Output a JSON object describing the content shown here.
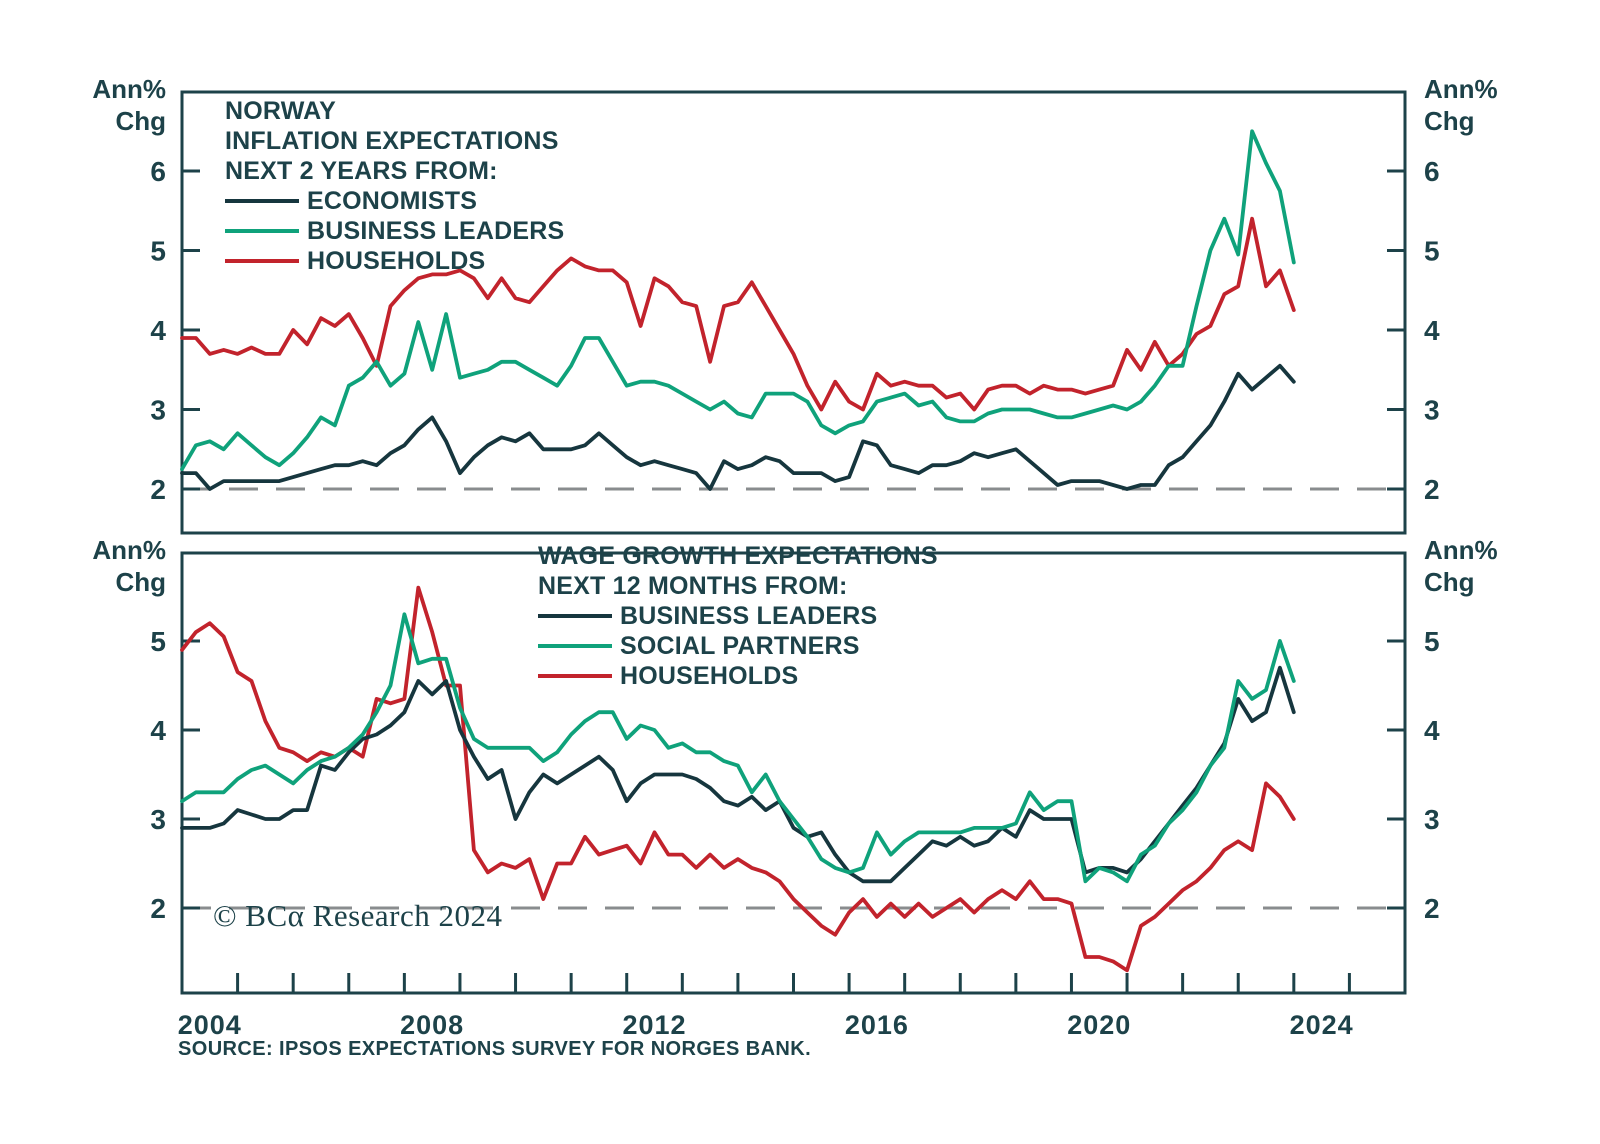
{
  "footer": {
    "copyright": "© BCα Research 2024",
    "source": "SOURCE: IPSOS EXPECTATIONS SURVEY FOR NORGES BANK."
  },
  "colors": {
    "dark": "#16363e",
    "green": "#0fa27b",
    "red": "#c2232c",
    "axis": "#1d4249",
    "dashed": "#898c8e",
    "text": "#1d4249"
  },
  "chart_data": [
    {
      "id": "inflation",
      "type": "line",
      "title_lines": [
        "NORWAY",
        "INFLATION EXPECTATIONS",
        "NEXT 2 YEARS FROM:"
      ],
      "unit_label": [
        "Ann%",
        "Chg"
      ],
      "x_start": 2004.0,
      "x_step": 0.25,
      "xlim": [
        2004,
        2026
      ],
      "ylim": [
        1.45,
        7.0
      ],
      "y_ticks": [
        6,
        5,
        4,
        3,
        2
      ],
      "reference_line": 2,
      "grid": "off",
      "legend_position": "top-left-inside",
      "series": [
        {
          "name": "ECONOMISTS",
          "color_key": "dark",
          "values": [
            2.2,
            2.2,
            2.0,
            2.1,
            2.1,
            2.1,
            2.1,
            2.1,
            2.15,
            2.2,
            2.25,
            2.3,
            2.3,
            2.35,
            2.3,
            2.45,
            2.55,
            2.75,
            2.9,
            2.6,
            2.2,
            2.4,
            2.55,
            2.65,
            2.6,
            2.7,
            2.5,
            2.5,
            2.5,
            2.55,
            2.7,
            2.55,
            2.4,
            2.3,
            2.35,
            2.3,
            2.25,
            2.2,
            2.0,
            2.35,
            2.25,
            2.3,
            2.4,
            2.35,
            2.2,
            2.2,
            2.2,
            2.1,
            2.15,
            2.6,
            2.55,
            2.3,
            2.25,
            2.2,
            2.3,
            2.3,
            2.35,
            2.45,
            2.4,
            2.45,
            2.5,
            2.35,
            2.2,
            2.05,
            2.1,
            2.1,
            2.1,
            2.05,
            2.0,
            2.05,
            2.05,
            2.3,
            2.4,
            2.6,
            2.8,
            3.1,
            3.45,
            3.25,
            3.4,
            3.55,
            3.35
          ]
        },
        {
          "name": "BUSINESS LEADERS",
          "color_key": "green",
          "values": [
            2.25,
            2.55,
            2.6,
            2.5,
            2.7,
            2.55,
            2.4,
            2.3,
            2.45,
            2.65,
            2.9,
            2.8,
            3.3,
            3.4,
            3.6,
            3.3,
            3.45,
            4.1,
            3.5,
            4.2,
            3.4,
            3.45,
            3.5,
            3.6,
            3.6,
            3.5,
            3.4,
            3.3,
            3.55,
            3.9,
            3.9,
            3.6,
            3.3,
            3.35,
            3.35,
            3.3,
            3.2,
            3.1,
            3.0,
            3.1,
            2.95,
            2.9,
            3.2,
            3.2,
            3.2,
            3.1,
            2.8,
            2.7,
            2.8,
            2.85,
            3.1,
            3.15,
            3.2,
            3.05,
            3.1,
            2.9,
            2.85,
            2.85,
            2.95,
            3.0,
            3.0,
            3.0,
            2.95,
            2.9,
            2.9,
            2.95,
            3.0,
            3.05,
            3.0,
            3.1,
            3.3,
            3.55,
            3.55,
            4.3,
            5.0,
            5.4,
            4.95,
            6.5,
            6.1,
            5.75,
            4.85
          ]
        },
        {
          "name": "HOUSEHOLDS",
          "color_key": "red",
          "values": [
            3.9,
            3.9,
            3.7,
            3.75,
            3.7,
            3.78,
            3.7,
            3.7,
            4.0,
            3.82,
            4.15,
            4.05,
            4.2,
            3.9,
            3.55,
            4.3,
            4.5,
            4.65,
            4.7,
            4.7,
            4.75,
            4.65,
            4.4,
            4.65,
            4.4,
            4.35,
            4.55,
            4.75,
            4.9,
            4.8,
            4.75,
            4.75,
            4.6,
            4.05,
            4.65,
            4.55,
            4.35,
            4.3,
            3.6,
            4.3,
            4.35,
            4.6,
            4.3,
            4.0,
            3.7,
            3.3,
            3.0,
            3.35,
            3.1,
            3.0,
            3.45,
            3.3,
            3.35,
            3.3,
            3.3,
            3.15,
            3.2,
            3.0,
            3.25,
            3.3,
            3.3,
            3.2,
            3.3,
            3.25,
            3.25,
            3.2,
            3.25,
            3.3,
            3.75,
            3.5,
            3.85,
            3.55,
            3.7,
            3.95,
            4.05,
            4.45,
            4.55,
            5.4,
            4.55,
            4.75,
            4.25
          ]
        }
      ]
    },
    {
      "id": "wage",
      "type": "line",
      "title_lines": [
        "WAGE GROWTH EXPECTATIONS",
        "NEXT 12 MONTHS FROM:"
      ],
      "unit_label": [
        "Ann%",
        "Chg"
      ],
      "x_start": 2004.0,
      "x_step": 0.25,
      "xlim": [
        2004,
        2026
      ],
      "ylim": [
        1.05,
        6.0
      ],
      "y_ticks": [
        5,
        4,
        3,
        2
      ],
      "reference_line": 2,
      "grid": "off",
      "legend_position": "top-middle-inside",
      "x_ticks": [
        2004,
        2005,
        2006,
        2007,
        2008,
        2009,
        2010,
        2011,
        2012,
        2013,
        2014,
        2015,
        2016,
        2017,
        2018,
        2019,
        2020,
        2021,
        2022,
        2023,
        2024,
        2025
      ],
      "x_labels": [
        {
          "year": 2004,
          "text": "2004"
        },
        {
          "year": 2008,
          "text": "2008"
        },
        {
          "year": 2012,
          "text": "2012"
        },
        {
          "year": 2016,
          "text": "2016"
        },
        {
          "year": 2020,
          "text": "2020"
        },
        {
          "year": 2024,
          "text": "2024"
        }
      ],
      "series": [
        {
          "name": "BUSINESS LEADERS",
          "color_key": "dark",
          "values": [
            2.9,
            2.9,
            2.9,
            2.95,
            3.1,
            3.05,
            3.0,
            3.0,
            3.1,
            3.1,
            3.6,
            3.55,
            3.75,
            3.9,
            3.95,
            4.05,
            4.2,
            4.55,
            4.4,
            4.55,
            4.0,
            3.7,
            3.45,
            3.55,
            3.0,
            3.3,
            3.5,
            3.4,
            3.5,
            3.6,
            3.7,
            3.55,
            3.2,
            3.4,
            3.5,
            3.5,
            3.5,
            3.45,
            3.35,
            3.2,
            3.15,
            3.25,
            3.1,
            3.2,
            2.9,
            2.8,
            2.85,
            2.6,
            2.4,
            2.3,
            2.3,
            2.3,
            2.45,
            2.6,
            2.75,
            2.7,
            2.8,
            2.7,
            2.75,
            2.9,
            2.8,
            3.1,
            3.0,
            3.0,
            3.0,
            2.4,
            2.45,
            2.45,
            2.4,
            2.55,
            2.75,
            2.95,
            3.15,
            3.35,
            3.6,
            3.85,
            4.35,
            4.1,
            4.2,
            4.7,
            4.2
          ]
        },
        {
          "name": "SOCIAL PARTNERS",
          "color_key": "green",
          "values": [
            3.2,
            3.3,
            3.3,
            3.3,
            3.45,
            3.55,
            3.6,
            3.5,
            3.4,
            3.55,
            3.65,
            3.7,
            3.8,
            3.95,
            4.2,
            4.5,
            5.3,
            4.75,
            4.8,
            4.8,
            4.25,
            3.9,
            3.8,
            3.8,
            3.8,
            3.8,
            3.65,
            3.75,
            3.95,
            4.1,
            4.2,
            4.2,
            3.9,
            4.05,
            4.0,
            3.8,
            3.85,
            3.75,
            3.75,
            3.65,
            3.6,
            3.3,
            3.5,
            3.2,
            3.0,
            2.8,
            2.55,
            2.45,
            2.4,
            2.45,
            2.85,
            2.6,
            2.75,
            2.85,
            2.85,
            2.85,
            2.85,
            2.9,
            2.9,
            2.9,
            2.95,
            3.3,
            3.1,
            3.2,
            3.2,
            2.3,
            2.45,
            2.4,
            2.3,
            2.6,
            2.7,
            2.95,
            3.1,
            3.3,
            3.6,
            3.8,
            4.55,
            4.35,
            4.45,
            5.0,
            4.55
          ]
        },
        {
          "name": "HOUSEHOLDS",
          "color_key": "red",
          "values": [
            4.9,
            5.1,
            5.2,
            5.05,
            4.65,
            4.55,
            4.1,
            3.8,
            3.75,
            3.65,
            3.75,
            3.7,
            3.8,
            3.7,
            4.35,
            4.3,
            4.35,
            5.6,
            5.1,
            4.5,
            4.5,
            2.65,
            2.4,
            2.5,
            2.45,
            2.55,
            2.1,
            2.5,
            2.5,
            2.8,
            2.6,
            2.65,
            2.7,
            2.5,
            2.85,
            2.6,
            2.6,
            2.45,
            2.6,
            2.45,
            2.55,
            2.45,
            2.4,
            2.3,
            2.1,
            1.95,
            1.8,
            1.7,
            1.95,
            2.1,
            1.9,
            2.05,
            1.9,
            2.05,
            1.9,
            2.0,
            2.1,
            1.95,
            2.1,
            2.2,
            2.1,
            2.3,
            2.1,
            2.1,
            2.05,
            1.45,
            1.45,
            1.4,
            1.3,
            1.8,
            1.9,
            2.05,
            2.2,
            2.3,
            2.45,
            2.65,
            2.75,
            2.65,
            3.4,
            3.25,
            3.0
          ]
        }
      ]
    }
  ]
}
